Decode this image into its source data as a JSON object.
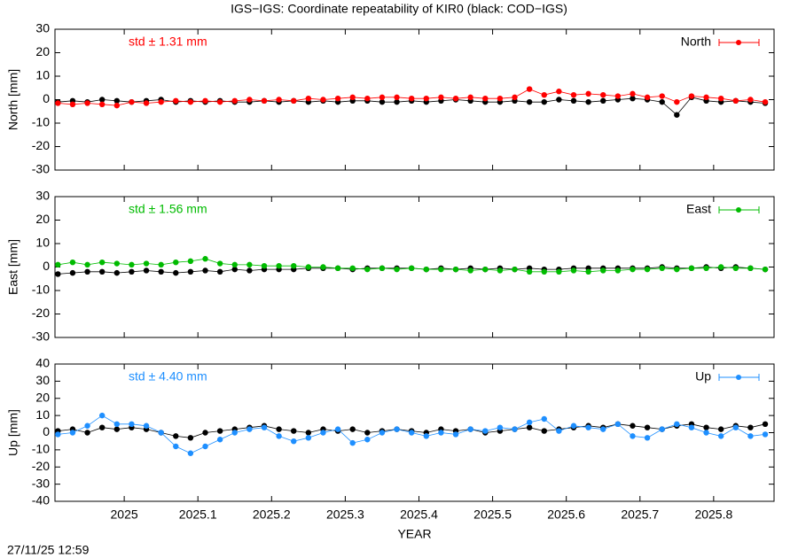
{
  "title": "IGS−IGS: Coordinate repeatability of KIR0 (black: COD−IGS)",
  "timestamp": "27/11/25 12:59",
  "chart_data": [
    {
      "type": "line",
      "ylabel": "North [mm]",
      "annotation": "std ± 1.31 mm",
      "xlim": [
        2024.906,
        2025.882
      ],
      "ylim": [
        -30,
        30
      ],
      "yticks": [
        -30,
        -20,
        -10,
        0,
        10,
        20,
        30
      ],
      "x": [
        2024.91,
        2024.93,
        2024.95,
        2024.97,
        2024.99,
        2025.01,
        2025.03,
        2025.05,
        2025.07,
        2025.09,
        2025.11,
        2025.13,
        2025.15,
        2025.17,
        2025.19,
        2025.21,
        2025.23,
        2025.25,
        2025.27,
        2025.29,
        2025.31,
        2025.33,
        2025.35,
        2025.37,
        2025.39,
        2025.41,
        2025.43,
        2025.45,
        2025.47,
        2025.49,
        2025.51,
        2025.53,
        2025.55,
        2025.57,
        2025.59,
        2025.61,
        2025.63,
        2025.65,
        2025.67,
        2025.69,
        2025.71,
        2025.73,
        2025.75,
        2025.77,
        2025.79,
        2025.81,
        2025.83,
        2025.85,
        2025.87
      ],
      "series": [
        {
          "color": "#000000",
          "values": [
            -1,
            -0.5,
            -1,
            0,
            -0.5,
            -1,
            -0.5,
            0,
            -1,
            -0.5,
            -1,
            -0.5,
            -1,
            -1,
            -0.5,
            -1,
            -0.5,
            -1,
            -0.5,
            -1,
            -0.5,
            -0.5,
            -1,
            -1,
            -0.5,
            -1,
            -0.5,
            0,
            -0.5,
            -1,
            -1,
            -0.5,
            -1,
            -1,
            0,
            -0.5,
            -1,
            -0.5,
            0,
            0.5,
            0,
            -1,
            -6.5,
            1,
            -0.5,
            -1,
            -0.5,
            -1,
            -1.5
          ]
        },
        {
          "name": "North",
          "color": "#ff0000",
          "values": [
            -1.5,
            -2,
            -1.5,
            -2,
            -2.5,
            -1,
            -1.5,
            -1,
            -0.5,
            -1,
            -0.5,
            -1,
            -0.5,
            0,
            -0.5,
            0,
            -0.5,
            0.5,
            0,
            0.5,
            1,
            0.5,
            1,
            1,
            0.5,
            0.5,
            1,
            0.5,
            1,
            0.5,
            0.5,
            1,
            4.5,
            2,
            3.5,
            2,
            2.5,
            2,
            1.5,
            2.5,
            1,
            1.5,
            -1,
            1.5,
            1,
            0.5,
            -0.5,
            0,
            -1
          ]
        }
      ]
    },
    {
      "type": "line",
      "ylabel": "East [mm]",
      "annotation": "std ± 1.56 mm",
      "xlim": [
        2024.906,
        2025.882
      ],
      "ylim": [
        -30,
        30
      ],
      "yticks": [
        -30,
        -20,
        -10,
        0,
        10,
        20,
        30
      ],
      "x": [
        2024.91,
        2024.93,
        2024.95,
        2024.97,
        2024.99,
        2025.01,
        2025.03,
        2025.05,
        2025.07,
        2025.09,
        2025.11,
        2025.13,
        2025.15,
        2025.17,
        2025.19,
        2025.21,
        2025.23,
        2025.25,
        2025.27,
        2025.29,
        2025.31,
        2025.33,
        2025.35,
        2025.37,
        2025.39,
        2025.41,
        2025.43,
        2025.45,
        2025.47,
        2025.49,
        2025.51,
        2025.53,
        2025.55,
        2025.57,
        2025.59,
        2025.61,
        2025.63,
        2025.65,
        2025.67,
        2025.69,
        2025.71,
        2025.73,
        2025.75,
        2025.77,
        2025.79,
        2025.81,
        2025.83,
        2025.85,
        2025.87
      ],
      "series": [
        {
          "color": "#000000",
          "values": [
            -3,
            -2.5,
            -2,
            -2,
            -2.5,
            -2,
            -1.5,
            -2,
            -2.5,
            -2,
            -1.5,
            -2,
            -1,
            -1.5,
            -1,
            -1,
            -1,
            -0.5,
            -0.5,
            -0.5,
            -1,
            -0.5,
            -0.5,
            -0.5,
            -0.5,
            -1,
            -0.5,
            -1,
            -0.5,
            -1,
            -0.5,
            -1,
            -0.5,
            -1,
            -1,
            -0.5,
            -0.5,
            -0.5,
            -0.5,
            -0.5,
            -0.5,
            0,
            -0.5,
            -0.5,
            0,
            -0.5,
            0,
            -0.5,
            -1
          ]
        },
        {
          "name": "East",
          "color": "#00bb00",
          "values": [
            1,
            2,
            1,
            2,
            1.5,
            1,
            1.5,
            1,
            2,
            2.5,
            3.5,
            1.5,
            1,
            1,
            0.5,
            0.5,
            0.5,
            0,
            0,
            -0.5,
            -0.5,
            -1,
            -0.5,
            -1,
            -0.5,
            -1,
            -1,
            -1,
            -1.5,
            -1,
            -1.5,
            -1,
            -2,
            -2,
            -2,
            -1.5,
            -2,
            -1.5,
            -1.5,
            -1,
            -1,
            -0.5,
            -1,
            -0.5,
            -0.5,
            0,
            -0.5,
            -0.5,
            -1
          ]
        }
      ]
    },
    {
      "type": "line",
      "ylabel": "Up [mm]",
      "annotation": "std ± 4.40 mm",
      "xlabel": "YEAR",
      "xlim": [
        2024.906,
        2025.882
      ],
      "ylim": [
        -40,
        40
      ],
      "yticks": [
        -40,
        -30,
        -20,
        -10,
        0,
        10,
        20,
        30,
        40
      ],
      "xticks": [
        2025,
        2025.1,
        2025.2,
        2025.3,
        2025.4,
        2025.5,
        2025.6,
        2025.7,
        2025.8
      ],
      "x": [
        2024.91,
        2024.93,
        2024.95,
        2024.97,
        2024.99,
        2025.01,
        2025.03,
        2025.05,
        2025.07,
        2025.09,
        2025.11,
        2025.13,
        2025.15,
        2025.17,
        2025.19,
        2025.21,
        2025.23,
        2025.25,
        2025.27,
        2025.29,
        2025.31,
        2025.33,
        2025.35,
        2025.37,
        2025.39,
        2025.41,
        2025.43,
        2025.45,
        2025.47,
        2025.49,
        2025.51,
        2025.53,
        2025.55,
        2025.57,
        2025.59,
        2025.61,
        2025.63,
        2025.65,
        2025.67,
        2025.69,
        2025.71,
        2025.73,
        2025.75,
        2025.77,
        2025.79,
        2025.81,
        2025.83,
        2025.85,
        2025.87
      ],
      "series": [
        {
          "color": "#000000",
          "values": [
            1,
            2,
            0,
            3,
            2,
            3,
            2,
            0,
            -2,
            -3,
            0,
            1,
            2,
            3,
            4,
            2,
            1,
            0,
            2,
            1,
            2,
            0,
            1,
            2,
            1,
            0,
            2,
            1,
            2,
            0,
            1,
            2,
            3,
            1,
            2,
            3,
            4,
            3,
            5,
            4,
            3,
            2,
            4,
            5,
            3,
            2,
            4,
            3,
            5
          ]
        },
        {
          "name": "Up",
          "color": "#1e8fff",
          "values": [
            -1,
            0,
            4,
            10,
            5,
            5,
            4,
            0,
            -8,
            -12,
            -8,
            -4,
            0,
            2,
            3,
            -2,
            -5,
            -3,
            0,
            2,
            -6,
            -4,
            0,
            2,
            0,
            -2,
            0,
            -1,
            2,
            1,
            3,
            2,
            6,
            8,
            1,
            4,
            3,
            2,
            5,
            -2,
            -3,
            2,
            5,
            3,
            0,
            -2,
            3,
            -2,
            -1
          ]
        }
      ]
    }
  ]
}
